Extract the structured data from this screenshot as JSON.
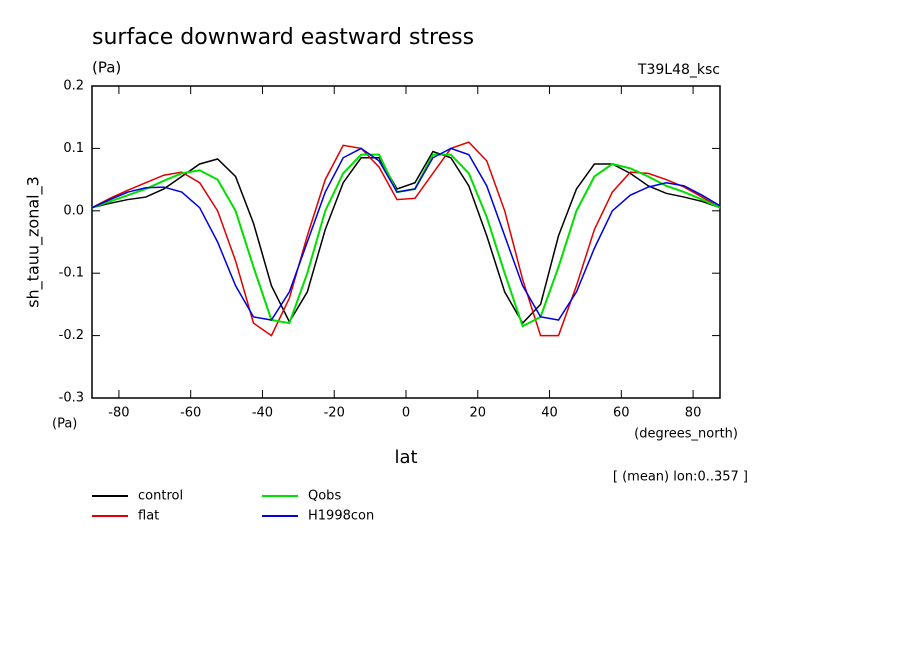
{
  "chart_data": {
    "type": "line",
    "title": "surface downward eastward stress",
    "y_units": "(Pa)",
    "run_label": "T39L48_ksc",
    "ylabel": "sh_tauu_zonal_3",
    "y_units_bottom": "(Pa)",
    "x_units": "(degrees_north)",
    "xlabel": "lat",
    "annotation": "[ (mean) lon:0..357 ]",
    "x": [
      -87.5,
      -82.5,
      -77.5,
      -72.5,
      -67.5,
      -62.5,
      -57.5,
      -52.5,
      -47.5,
      -42.5,
      -37.5,
      -32.5,
      -27.5,
      -22.5,
      -17.5,
      -12.5,
      -7.5,
      -2.5,
      2.5,
      7.5,
      12.5,
      17.5,
      22.5,
      27.5,
      32.5,
      37.5,
      42.5,
      47.5,
      52.5,
      57.5,
      62.5,
      67.5,
      72.5,
      77.5,
      82.5,
      87.5
    ],
    "series": [
      {
        "name": "control",
        "color": "#000000",
        "values": [
          0.005,
          0.012,
          0.018,
          0.022,
          0.035,
          0.055,
          0.075,
          0.083,
          0.055,
          -0.02,
          -0.12,
          -0.178,
          -0.13,
          -0.03,
          0.045,
          0.085,
          0.085,
          0.035,
          0.045,
          0.095,
          0.085,
          0.04,
          -0.04,
          -0.13,
          -0.18,
          -0.15,
          -0.04,
          0.035,
          0.075,
          0.075,
          0.06,
          0.04,
          0.028,
          0.022,
          0.015,
          0.005
        ]
      },
      {
        "name": "flat",
        "color": "#e00000",
        "values": [
          0.005,
          0.02,
          0.033,
          0.045,
          0.057,
          0.062,
          0.045,
          0.0,
          -0.08,
          -0.18,
          -0.2,
          -0.14,
          -0.04,
          0.05,
          0.105,
          0.1,
          0.07,
          0.018,
          0.02,
          0.06,
          0.1,
          0.11,
          0.08,
          0.0,
          -0.11,
          -0.2,
          -0.2,
          -0.12,
          -0.03,
          0.03,
          0.062,
          0.06,
          0.05,
          0.038,
          0.022,
          0.005
        ]
      },
      {
        "name": "Qobs",
        "color": "#00e000",
        "values": [
          0.005,
          0.015,
          0.025,
          0.035,
          0.048,
          0.06,
          0.065,
          0.05,
          0.0,
          -0.09,
          -0.175,
          -0.18,
          -0.1,
          0.0,
          0.06,
          0.09,
          0.09,
          0.03,
          0.035,
          0.09,
          0.09,
          0.06,
          -0.01,
          -0.1,
          -0.185,
          -0.17,
          -0.09,
          0.0,
          0.055,
          0.075,
          0.068,
          0.055,
          0.04,
          0.03,
          0.018,
          0.005
        ]
      },
      {
        "name": "H1998con",
        "color": "#0000e0",
        "values": [
          0.005,
          0.018,
          0.03,
          0.037,
          0.038,
          0.03,
          0.005,
          -0.05,
          -0.12,
          -0.17,
          -0.175,
          -0.13,
          -0.05,
          0.03,
          0.085,
          0.1,
          0.08,
          0.03,
          0.035,
          0.085,
          0.1,
          0.09,
          0.04,
          -0.04,
          -0.12,
          -0.17,
          -0.175,
          -0.13,
          -0.06,
          0.0,
          0.025,
          0.038,
          0.045,
          0.04,
          0.025,
          0.008
        ]
      }
    ],
    "xlim": [
      -87.5,
      87.5
    ],
    "xticks": [
      -80,
      -60,
      -40,
      -20,
      0,
      20,
      40,
      60,
      80
    ],
    "ylim": [
      -0.3,
      0.2
    ],
    "yticks": [
      {
        "value": -0.3,
        "label": "-0.3"
      },
      {
        "value": -0.2,
        "label": "-0.2"
      },
      {
        "value": -0.1,
        "label": "-0.1"
      },
      {
        "value": 0,
        "label": "0.0"
      },
      {
        "value": 0.1,
        "label": "0.1"
      },
      {
        "value": 0.2,
        "label": "0.2"
      }
    ]
  }
}
